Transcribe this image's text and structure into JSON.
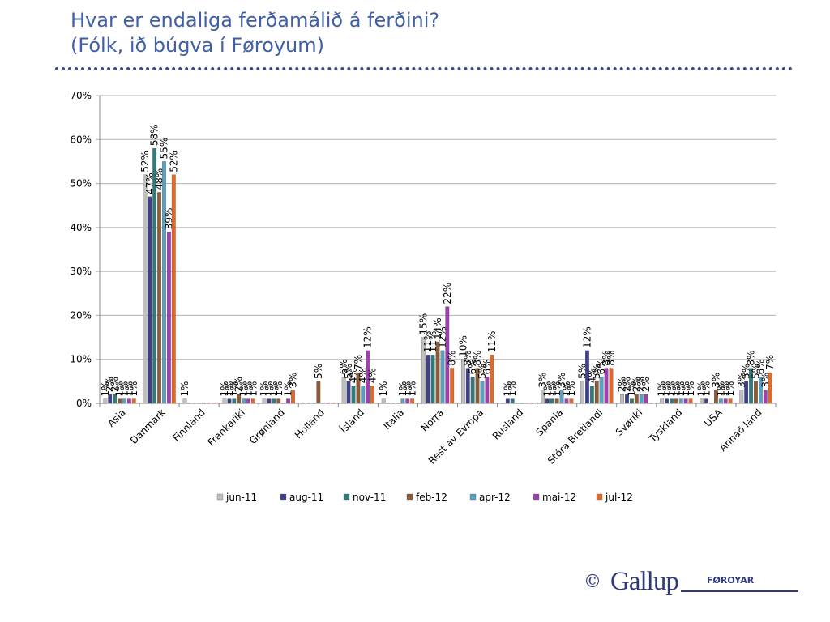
{
  "header": {
    "title_line1": "Hvar er endaliga ferðamálið á ferðini?",
    "title_line2": "(Fólk, ið búgva í Føroyum)"
  },
  "footer": {
    "copyright": "©",
    "logo_text": "Gallup",
    "logo_sub": "FØROYAR"
  },
  "chart_data": {
    "type": "bar",
    "title": "",
    "xlabel": "",
    "ylabel": "",
    "ylim": [
      0,
      70
    ],
    "yticks": [
      "0%",
      "10%",
      "20%",
      "30%",
      "40%",
      "50%",
      "60%",
      "70%"
    ],
    "grid": true,
    "legend_position": "bottom",
    "categories": [
      "Asia",
      "Danmark",
      "Finnland",
      "Frankariki",
      "Grønland",
      "Holland",
      "Ísland",
      "Italia",
      "Norra",
      "Rest av Evropa",
      "Rusland",
      "Spania",
      "Stóra Bretlandi",
      "Svøriki",
      "Tyskland",
      "USA",
      "Annað land"
    ],
    "series": [
      {
        "name": "jun-11",
        "color": "#bfbfbf",
        "values": [
          1,
          52,
          1,
          1,
          1,
          0,
          6,
          1,
          15,
          10,
          0,
          3,
          5,
          2,
          1,
          1,
          3
        ],
        "labels": [
          "1%",
          "52%",
          "1%",
          "1%",
          "1%",
          "",
          "6%",
          "1%",
          "15%",
          "10%",
          "",
          "3%",
          "5%",
          "2%",
          "1%",
          "1%",
          "3%"
        ]
      },
      {
        "name": "aug-11",
        "color": "#3f3f8f",
        "values": [
          2,
          47,
          0,
          1,
          1,
          0,
          5,
          0,
          11,
          8,
          1,
          1,
          12,
          2,
          1,
          1,
          5
        ],
        "labels": [
          "2%",
          "47%",
          "",
          "1%",
          "1%",
          "",
          "5%",
          "",
          "11%",
          "8%",
          "1%",
          "1%",
          "12%",
          "2%",
          "1%",
          "1%",
          "5%"
        ]
      },
      {
        "name": "nov-11",
        "color": "#317a7a",
        "values": [
          2,
          58,
          0,
          1,
          1,
          0,
          4,
          0,
          11,
          6,
          1,
          1,
          4,
          1,
          1,
          0,
          8
        ],
        "labels": [
          "2%",
          "58%",
          "",
          "1%",
          "1%",
          "",
          "4%",
          "",
          "11%",
          "6%",
          "1%",
          "1%",
          "4%",
          "1%",
          "1%",
          "",
          "8%"
        ]
      },
      {
        "name": "feb-12",
        "color": "#8c5a35",
        "values": [
          1,
          48,
          0,
          2,
          1,
          5,
          7,
          0,
          14,
          8,
          0,
          1,
          5,
          2,
          1,
          3,
          5
        ],
        "labels": [
          "1%",
          "48%",
          "",
          "2%",
          "1%",
          "5%",
          "7%",
          "",
          "14%",
          "8%",
          "",
          "1%",
          "5%",
          "2%",
          "1%",
          "3%",
          "5%"
        ]
      },
      {
        "name": "apr-12",
        "color": "#5aa0c0",
        "values": [
          1,
          55,
          0,
          1,
          0,
          0,
          4,
          1,
          12,
          5,
          0,
          3,
          6,
          2,
          1,
          1,
          6
        ],
        "labels": [
          "1%",
          "55%",
          "",
          "1%",
          "",
          "",
          "4%",
          "1%",
          "12%",
          "5%",
          "",
          "3%",
          "6%",
          "2%",
          "1%",
          "1%",
          "6%"
        ]
      },
      {
        "name": "mai-12",
        "color": "#a040b0",
        "values": [
          1,
          39,
          0,
          1,
          1,
          0,
          12,
          1,
          22,
          6,
          0,
          1,
          8,
          2,
          1,
          1,
          3
        ],
        "labels": [
          "1%",
          "39%",
          "",
          "1%",
          "1%",
          "",
          "12%",
          "1%",
          "22%",
          "6%",
          "",
          "1%",
          "8%",
          "2%",
          "1%",
          "1%",
          "3%"
        ]
      },
      {
        "name": "jul-12",
        "color": "#e0692b",
        "values": [
          1,
          52,
          0,
          1,
          3,
          0,
          4,
          1,
          8,
          11,
          0,
          1,
          8,
          0,
          1,
          1,
          7
        ],
        "labels": [
          "1%",
          "52%",
          "",
          "1%",
          "3%",
          "",
          "4%",
          "1%",
          "8%",
          "11%",
          "",
          "1%",
          "8%",
          "",
          "1%",
          "1%",
          "7%"
        ]
      }
    ]
  }
}
